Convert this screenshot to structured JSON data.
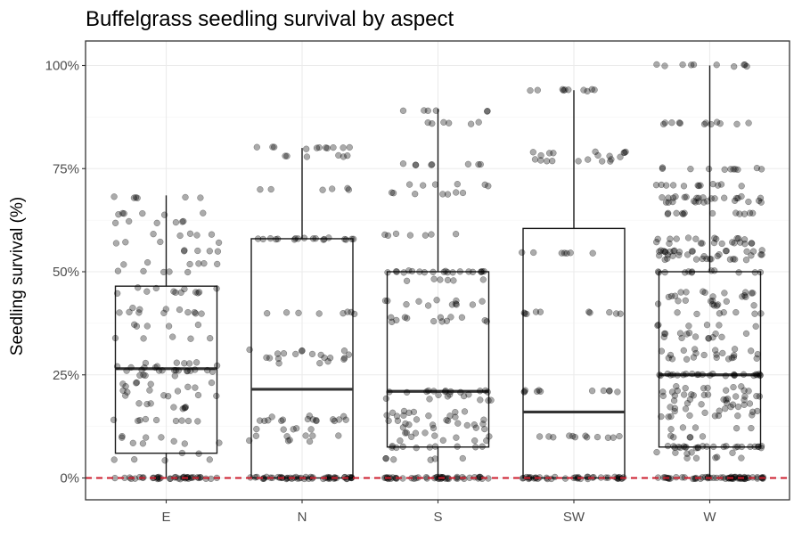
{
  "chart_data": {
    "type": "box-jitter",
    "title": "Buffelgrass seedling survival by aspect",
    "xlabel": "",
    "ylabel": "Seedling survival (%)",
    "categories": [
      "E",
      "N",
      "S",
      "SW",
      "W"
    ],
    "ylim": [
      -5,
      105
    ],
    "yticks": [
      0,
      25,
      50,
      75,
      100
    ],
    "ytick_labels": [
      "0%",
      "25%",
      "50%",
      "75%",
      "100%"
    ],
    "grid": true,
    "reference_line": {
      "y": 0,
      "color": "#cc1c2c",
      "style": "dashed"
    },
    "boxes": [
      {
        "category": "E",
        "lower_whisker": 0,
        "q1": 6,
        "median": 26.5,
        "q3": 46.5,
        "upper_whisker": 68.5
      },
      {
        "category": "N",
        "lower_whisker": 0,
        "q1": 0,
        "median": 21.5,
        "q3": 58,
        "upper_whisker": 80
      },
      {
        "category": "S",
        "lower_whisker": 0,
        "q1": 7.5,
        "median": 21,
        "q3": 50,
        "upper_whisker": 89.5
      },
      {
        "category": "SW",
        "lower_whisker": 0,
        "q1": 0,
        "median": 16,
        "q3": 60.5,
        "upper_whisker": 94
      },
      {
        "category": "W",
        "lower_whisker": 0,
        "q1": 7.5,
        "median": 25,
        "q3": 50,
        "upper_whisker": 100
      }
    ],
    "points": [
      {
        "category": "E",
        "values": [
          0,
          0,
          0,
          0,
          0,
          0,
          0,
          0,
          0,
          0,
          0,
          0,
          0,
          0,
          0,
          0,
          0,
          0,
          0,
          0,
          0,
          0,
          0,
          0,
          0,
          0,
          0,
          0,
          0,
          0,
          0,
          0,
          0,
          0,
          0,
          0,
          0,
          0,
          0,
          0,
          4.5,
          4.5,
          4.5,
          4.5,
          6,
          6,
          8.5,
          8.5,
          8.5,
          8.5,
          9,
          10,
          10,
          10,
          10,
          14,
          14,
          14,
          14,
          14,
          14,
          14,
          14,
          14,
          17,
          17,
          17,
          17,
          17,
          18,
          18,
          18,
          20,
          20,
          20,
          20,
          20,
          21,
          21,
          21,
          21,
          22,
          22,
          22,
          23,
          23,
          23,
          23,
          23,
          25,
          25,
          25,
          25,
          26,
          26,
          26,
          26,
          26,
          26,
          26,
          26,
          26,
          26,
          26,
          26,
          26,
          27,
          27,
          27,
          27,
          27,
          27,
          28,
          28,
          28,
          28,
          28,
          34,
          34,
          34,
          34,
          34,
          37,
          37,
          37,
          37,
          37,
          40,
          40,
          40,
          40,
          40,
          40,
          40,
          40,
          41,
          41,
          41,
          41,
          45,
          45,
          45,
          45,
          45,
          45,
          45,
          45,
          46,
          46,
          46,
          46,
          50,
          50,
          50,
          50,
          50,
          52,
          52,
          52,
          52,
          52,
          52,
          55,
          55,
          55,
          55,
          55,
          57,
          57,
          57,
          57,
          59,
          59,
          59,
          59,
          59,
          62,
          62,
          62,
          62,
          62,
          62,
          64,
          64,
          64,
          64,
          64,
          64,
          68,
          68,
          68,
          68,
          68,
          68
        ]
      },
      {
        "category": "N",
        "values": [
          0,
          0,
          0,
          0,
          0,
          0,
          0,
          0,
          0,
          0,
          0,
          0,
          0,
          0,
          0,
          0,
          0,
          0,
          0,
          0,
          0,
          0,
          0,
          0,
          0,
          0,
          0,
          0,
          0,
          0,
          0,
          0,
          0,
          0,
          0,
          0,
          0,
          0,
          0,
          0,
          0,
          0,
          0,
          0,
          0,
          0,
          0,
          0,
          0,
          0,
          9,
          9,
          9,
          9,
          10,
          10,
          10,
          10,
          10,
          12,
          12,
          12,
          12,
          12,
          14,
          14,
          14,
          14,
          14,
          14,
          14,
          14,
          14,
          14,
          14,
          14,
          14,
          15,
          15,
          15,
          28,
          28,
          28,
          29,
          29,
          29,
          29,
          29,
          29,
          29,
          30,
          30,
          30,
          30,
          30,
          30,
          31,
          31,
          31,
          31,
          40,
          40,
          40,
          40,
          40,
          40,
          40,
          40,
          58,
          58,
          58,
          58,
          58,
          58,
          58,
          58,
          58,
          58,
          58,
          58,
          58,
          58,
          58,
          58,
          58,
          58,
          70,
          70,
          70,
          70,
          70,
          70,
          78,
          78,
          78,
          78,
          78,
          78,
          80,
          80,
          80,
          80,
          80,
          80,
          80,
          80,
          80,
          80,
          80
        ]
      },
      {
        "category": "S",
        "values": [
          0,
          0,
          0,
          0,
          0,
          0,
          0,
          0,
          0,
          0,
          0,
          0,
          0,
          0,
          0,
          0,
          0,
          0,
          0,
          0,
          0,
          0,
          0,
          0,
          0,
          0,
          0,
          0,
          0,
          0,
          0,
          0,
          0,
          0,
          0,
          0,
          0,
          0,
          0,
          0,
          0,
          0,
          0,
          0,
          0,
          0,
          4.5,
          4.5,
          4.5,
          4.5,
          4.5,
          4.5,
          7.5,
          7.5,
          7.5,
          7.5,
          7.5,
          7.5,
          7.5,
          7.5,
          7.5,
          7.5,
          9,
          9,
          9,
          9,
          10,
          10,
          10,
          10,
          11,
          11,
          11,
          11,
          12,
          12,
          12,
          12,
          13,
          13,
          13,
          13,
          13,
          13,
          13,
          14,
          14,
          14,
          14,
          14,
          14,
          15,
          15,
          15,
          15,
          15,
          15,
          16,
          16,
          16,
          16,
          16,
          16,
          19,
          19,
          19,
          19,
          19,
          20,
          20,
          20,
          20,
          20,
          21,
          21,
          21,
          21,
          21,
          21,
          21,
          21,
          21,
          21,
          21,
          21,
          38,
          38,
          38,
          38,
          38,
          38,
          38,
          39,
          39,
          39,
          39,
          39,
          39,
          42,
          42,
          42,
          42,
          42,
          42,
          43,
          43,
          43,
          43,
          43,
          43,
          48,
          48,
          48,
          48,
          48,
          48,
          50,
          50,
          50,
          50,
          50,
          50,
          50,
          50,
          50,
          50,
          50,
          50,
          50,
          50,
          50,
          50,
          50,
          50,
          50,
          50,
          59,
          59,
          59,
          59,
          59,
          59,
          59,
          69,
          69,
          69,
          69,
          69,
          69,
          69,
          71,
          71,
          71,
          71,
          71,
          71,
          76,
          76,
          76,
          76,
          76,
          76,
          76,
          76,
          86,
          86,
          86,
          86,
          86,
          86,
          89,
          89,
          89,
          89,
          89,
          89
        ]
      },
      {
        "category": "SW",
        "values": [
          0,
          0,
          0,
          0,
          0,
          0,
          0,
          0,
          0,
          0,
          0,
          0,
          0,
          0,
          0,
          0,
          0,
          0,
          0,
          0,
          0,
          0,
          0,
          0,
          0,
          0,
          0,
          0,
          0,
          0,
          0,
          0,
          0,
          0,
          0,
          0,
          0,
          0,
          0,
          0,
          10,
          10,
          10,
          10,
          10,
          10,
          10,
          10,
          10,
          10,
          10,
          10,
          21,
          21,
          21,
          21,
          21,
          21,
          21,
          21,
          21,
          21,
          21,
          40,
          40,
          40,
          40,
          40,
          40,
          40,
          40,
          40,
          40,
          54.5,
          54.5,
          54.5,
          54.5,
          54.5,
          54.5,
          54.5,
          77,
          77,
          77,
          77,
          77,
          77,
          77,
          77,
          77,
          78,
          78,
          78,
          78,
          79,
          79,
          79,
          79,
          79,
          79,
          79,
          94,
          94,
          94,
          94,
          94,
          94,
          94,
          94,
          94,
          94
        ]
      },
      {
        "category": "W",
        "values": [
          0,
          0,
          0,
          0,
          0,
          0,
          0,
          0,
          0,
          0,
          0,
          0,
          0,
          0,
          0,
          0,
          0,
          0,
          0,
          0,
          0,
          0,
          0,
          0,
          0,
          0,
          0,
          0,
          0,
          0,
          0,
          0,
          0,
          0,
          0,
          0,
          0,
          0,
          0,
          0,
          0,
          0,
          0,
          0,
          0,
          0,
          0,
          0,
          0,
          0,
          0,
          0,
          0,
          0,
          0,
          0,
          0,
          0,
          0,
          0,
          5,
          5,
          5,
          5,
          5,
          6,
          6,
          6,
          6,
          6,
          7.5,
          7.5,
          7.5,
          7.5,
          7.5,
          7.5,
          7.5,
          7.5,
          7.5,
          7.5,
          7.5,
          7.5,
          7.5,
          7.5,
          7.5,
          7.5,
          7.5,
          7.5,
          7.5,
          7.5,
          7.5,
          7.5,
          7.5,
          7.5,
          7.5,
          10,
          10,
          10,
          10,
          10,
          12,
          12,
          12,
          12,
          12,
          15,
          15,
          15,
          15,
          15,
          15,
          15,
          15,
          16,
          16,
          16,
          16,
          16,
          17,
          17,
          17,
          17,
          17,
          17,
          18,
          18,
          18,
          18,
          18,
          18,
          19,
          19,
          19,
          19,
          19,
          19,
          20,
          20,
          20,
          20,
          20,
          20,
          20,
          20,
          20,
          20,
          20,
          21,
          21,
          21,
          21,
          21,
          21,
          22,
          22,
          22,
          22,
          22,
          22,
          25,
          25,
          25,
          25,
          25,
          25,
          25,
          25,
          25,
          25,
          25,
          25,
          25,
          25,
          25,
          25,
          25,
          25,
          25,
          25,
          25,
          25,
          25,
          25,
          25,
          29,
          29,
          29,
          29,
          29,
          29,
          29,
          29,
          29,
          30,
          30,
          30,
          30,
          30,
          30,
          30,
          31,
          31,
          31,
          31,
          31,
          31,
          34,
          34,
          34,
          34,
          34,
          34,
          34,
          35,
          35,
          35,
          35,
          35,
          35,
          35,
          37,
          37,
          37,
          37,
          37,
          37,
          40,
          40,
          40,
          40,
          40,
          40,
          40,
          42,
          42,
          42,
          42,
          42,
          42,
          43,
          43,
          43,
          43,
          43,
          44,
          44,
          44,
          44,
          44,
          44,
          44,
          45,
          45,
          45,
          45,
          45,
          45,
          45,
          45,
          50,
          50,
          50,
          50,
          50,
          50,
          50,
          50,
          50,
          50,
          50,
          50,
          53,
          53,
          53,
          53,
          53,
          53,
          53,
          53,
          53,
          53,
          53,
          54,
          54,
          54,
          54,
          54,
          54,
          54,
          54,
          54,
          54,
          54,
          55,
          55,
          55,
          55,
          55,
          55,
          55,
          55,
          55,
          55,
          55,
          55,
          55,
          55,
          55,
          55,
          57,
          57,
          57,
          57,
          57,
          57,
          57,
          57,
          57,
          57,
          57,
          57,
          58,
          58,
          58,
          58,
          58,
          58,
          58,
          58,
          58,
          58,
          64,
          64,
          64,
          64,
          64,
          64,
          64,
          64,
          64,
          64,
          64,
          64,
          67,
          67,
          67,
          67,
          67,
          67,
          67,
          67,
          67,
          67,
          67,
          67,
          68,
          68,
          68,
          68,
          68,
          68,
          68,
          68,
          68,
          68,
          68,
          68,
          68,
          68,
          68,
          68,
          71,
          71,
          71,
          71,
          71,
          71,
          71,
          71,
          71,
          71,
          71,
          71,
          75,
          75,
          75,
          75,
          75,
          75,
          75,
          75,
          75,
          75,
          75,
          86,
          86,
          86,
          86,
          86,
          86,
          86,
          86,
          86,
          86,
          86,
          86,
          100,
          100,
          100,
          100,
          100,
          100,
          100,
          100,
          100,
          100
        ]
      }
    ]
  }
}
